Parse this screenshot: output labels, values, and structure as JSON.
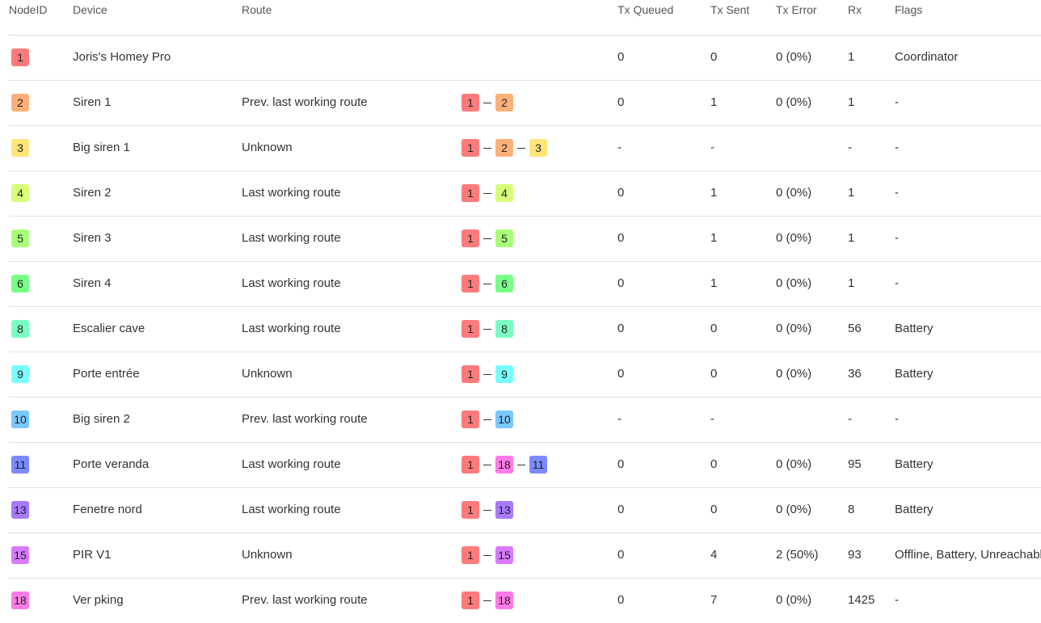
{
  "columns": {
    "nodeid": "NodeID",
    "device": "Device",
    "route": "Route",
    "tx_queued": "Tx Queued",
    "tx_sent": "Tx Sent",
    "tx_error": "Tx Error",
    "rx": "Rx",
    "flags": "Flags"
  },
  "node_colors": {
    "1": "#ff7b7b",
    "2": "#ffb07a",
    "3": "#ffe57a",
    "4": "#d6ff7a",
    "5": "#a8ff7a",
    "6": "#7aff86",
    "8": "#7affc0",
    "9": "#7affff",
    "10": "#7ac8ff",
    "11": "#7a8aff",
    "13": "#a87aff",
    "15": "#d87aff",
    "18": "#ff7ae6"
  },
  "rows": [
    {
      "id": "1",
      "device": "Joris's Homey Pro",
      "route": "",
      "path": [],
      "tx_queued": "0",
      "tx_sent": "0",
      "tx_error": "0 (0%)",
      "rx": "1",
      "flags": "Coordinator"
    },
    {
      "id": "2",
      "device": "Siren 1",
      "route": "Prev. last working route",
      "path": [
        "1",
        "2"
      ],
      "tx_queued": "0",
      "tx_sent": "1",
      "tx_error": "0 (0%)",
      "rx": "1",
      "flags": "-"
    },
    {
      "id": "3",
      "device": "Big siren 1",
      "route": "Unknown",
      "path": [
        "1",
        "2",
        "3"
      ],
      "tx_queued": "-",
      "tx_sent": "-",
      "tx_error": "",
      "rx": "-",
      "flags": "-"
    },
    {
      "id": "4",
      "device": "Siren 2",
      "route": "Last working route",
      "path": [
        "1",
        "4"
      ],
      "tx_queued": "0",
      "tx_sent": "1",
      "tx_error": "0 (0%)",
      "rx": "1",
      "flags": "-"
    },
    {
      "id": "5",
      "device": "Siren 3",
      "route": "Last working route",
      "path": [
        "1",
        "5"
      ],
      "tx_queued": "0",
      "tx_sent": "1",
      "tx_error": "0 (0%)",
      "rx": "1",
      "flags": "-"
    },
    {
      "id": "6",
      "device": "Siren 4",
      "route": "Last working route",
      "path": [
        "1",
        "6"
      ],
      "tx_queued": "0",
      "tx_sent": "1",
      "tx_error": "0 (0%)",
      "rx": "1",
      "flags": "-"
    },
    {
      "id": "8",
      "device": "Escalier cave",
      "route": "Last working route",
      "path": [
        "1",
        "8"
      ],
      "tx_queued": "0",
      "tx_sent": "0",
      "tx_error": "0 (0%)",
      "rx": "56",
      "flags": "Battery"
    },
    {
      "id": "9",
      "device": "Porte entrée",
      "route": "Unknown",
      "path": [
        "1",
        "9"
      ],
      "tx_queued": "0",
      "tx_sent": "0",
      "tx_error": "0 (0%)",
      "rx": "36",
      "flags": "Battery"
    },
    {
      "id": "10",
      "device": "Big siren 2",
      "route": "Prev. last working route",
      "path": [
        "1",
        "10"
      ],
      "tx_queued": "-",
      "tx_sent": "-",
      "tx_error": "",
      "rx": "-",
      "flags": "-"
    },
    {
      "id": "11",
      "device": "Porte veranda",
      "route": "Last working route",
      "path": [
        "1",
        "18",
        "11"
      ],
      "tx_queued": "0",
      "tx_sent": "0",
      "tx_error": "0 (0%)",
      "rx": "95",
      "flags": "Battery"
    },
    {
      "id": "13",
      "device": "Fenetre nord",
      "route": "Last working route",
      "path": [
        "1",
        "13"
      ],
      "tx_queued": "0",
      "tx_sent": "0",
      "tx_error": "0 (0%)",
      "rx": "8",
      "flags": "Battery"
    },
    {
      "id": "15",
      "device": "PIR V1",
      "route": "Unknown",
      "path": [
        "1",
        "15"
      ],
      "tx_queued": "0",
      "tx_sent": "4",
      "tx_error": "2 (50%)",
      "rx": "93",
      "flags": "Offline, Battery, Unreachable"
    },
    {
      "id": "18",
      "device": "Ver pking",
      "route": "Prev. last working route",
      "path": [
        "1",
        "18"
      ],
      "tx_queued": "0",
      "tx_sent": "7",
      "tx_error": "0 (0%)",
      "rx": "1425",
      "flags": "-"
    }
  ]
}
